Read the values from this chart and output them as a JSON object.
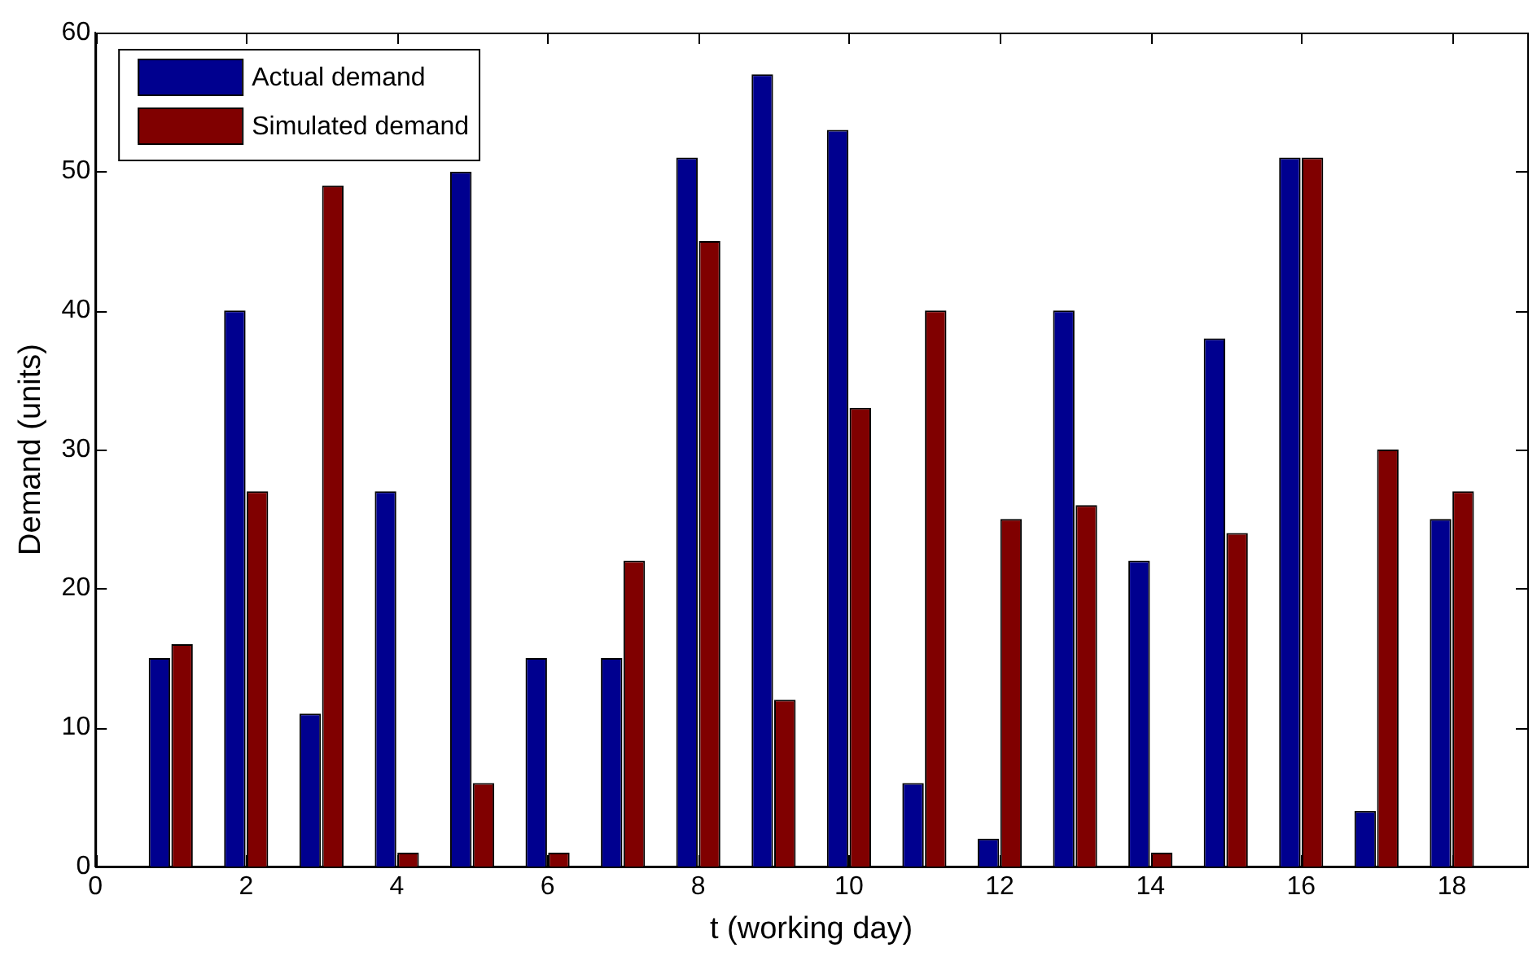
{
  "chart_data": {
    "type": "bar",
    "xlabel": "t (working day)",
    "ylabel": "Demand (units)",
    "x": [
      1,
      2,
      3,
      4,
      5,
      6,
      7,
      8,
      9,
      10,
      11,
      12,
      13,
      14,
      15,
      16,
      17,
      18
    ],
    "series": [
      {
        "name": "Actual demand",
        "color": "#00008f",
        "values": [
          15,
          40,
          11,
          27,
          50,
          15,
          15,
          51,
          57,
          53,
          6,
          2,
          40,
          22,
          38,
          51,
          4,
          25
        ]
      },
      {
        "name": "Simulated demand",
        "color": "#800000",
        "values": [
          16,
          27,
          49,
          1,
          6,
          1,
          22,
          45,
          12,
          33,
          40,
          25,
          26,
          1,
          24,
          51,
          30,
          27
        ]
      }
    ],
    "xlim": [
      0,
      19
    ],
    "xticks": [
      0,
      2,
      4,
      6,
      8,
      10,
      12,
      14,
      16,
      18
    ],
    "ylim": [
      0,
      60
    ],
    "yticks": [
      0,
      10,
      20,
      30,
      40,
      50,
      60
    ],
    "grid": false,
    "legend": "top left"
  }
}
